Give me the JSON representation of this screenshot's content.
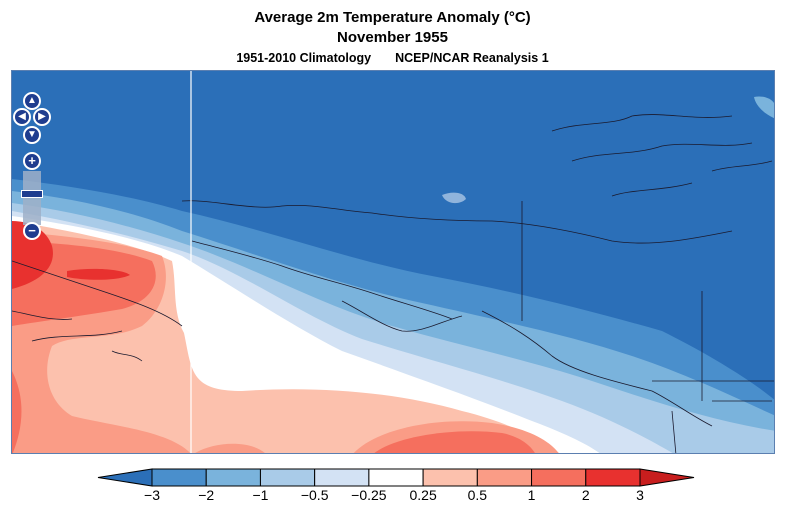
{
  "header": {
    "title": "Average 2m Temperature Anomaly (°C)",
    "period": "November 1955",
    "climatology": "1951-2010 Climatology",
    "dataset": "NCEP/NCAR Reanalysis 1"
  },
  "controls": {
    "pan_up": "▲",
    "pan_down": "▼",
    "pan_left": "◀",
    "pan_right": "▶",
    "zoom_in": "+",
    "zoom_out": "−",
    "zoom_min": "−"
  },
  "colorbar": {
    "labels": [
      "−3",
      "−2",
      "−1",
      "−0.5",
      "−0.25",
      "0.25",
      "0.5",
      "1",
      "2",
      "3"
    ],
    "colors": [
      "#2b6fb8",
      "#4a8fcc",
      "#7ab3dc",
      "#a9cbe8",
      "#d3e2f4",
      "#ffffff",
      "#fcc1ad",
      "#fa9c86",
      "#f56f5e",
      "#e8312f",
      "#c81e1e"
    ]
  },
  "map": {
    "colors": {
      "deep_blue": "#2b6fb8",
      "mid_blue": "#4a8fcc",
      "light_blue": "#7ab3dc",
      "pale_blue": "#a9cbe8",
      "faint_blue": "#d3e2f4",
      "white": "#ffffff",
      "pale_red": "#fcc1ad",
      "light_red": "#fa9c86",
      "mid_red": "#f56f5e",
      "deep_red": "#e8312f"
    }
  }
}
